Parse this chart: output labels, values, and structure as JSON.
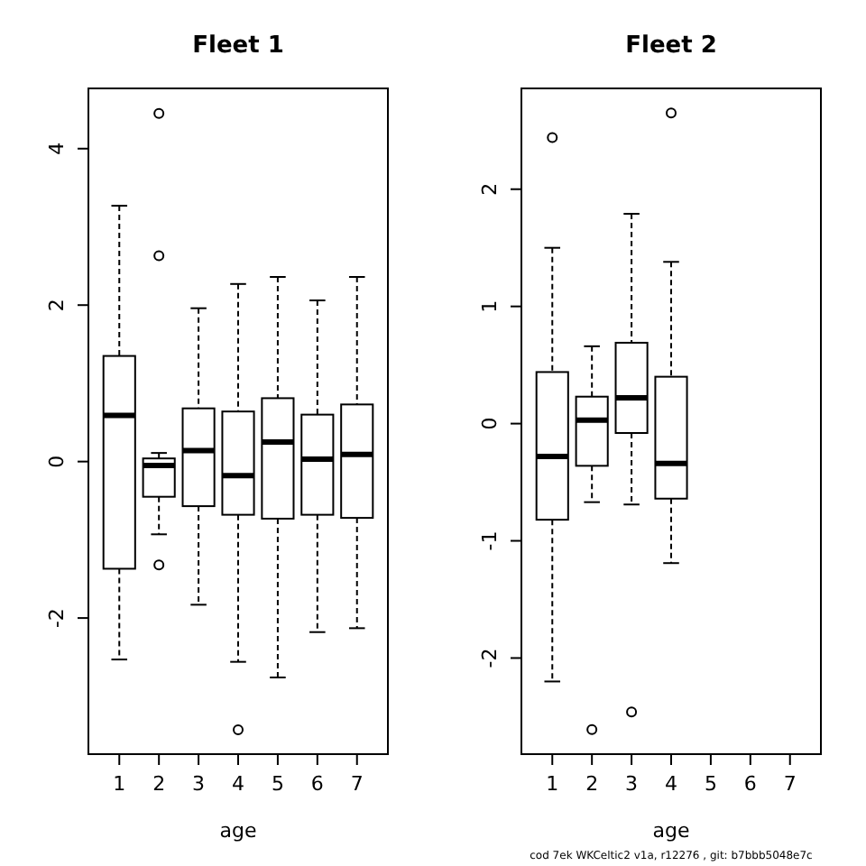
{
  "chart_data": [
    {
      "type": "box",
      "title": "Fleet 1",
      "xlabel": "age",
      "categories": [
        "1",
        "2",
        "3",
        "4",
        "5",
        "6",
        "7"
      ],
      "ylim": [
        -3.74,
        4.77
      ],
      "yticks": [
        -2,
        0,
        2,
        4
      ],
      "grid": false,
      "boxes": [
        {
          "low": -2.53,
          "q1": -1.37,
          "median": 0.59,
          "q3": 1.35,
          "high": 3.27
        },
        {
          "low": -0.93,
          "q1": -0.45,
          "median": -0.05,
          "q3": 0.04,
          "high": 0.11,
          "outliers": [
            4.45,
            2.63,
            -1.32
          ]
        },
        {
          "low": -1.83,
          "q1": -0.57,
          "median": 0.14,
          "q3": 0.68,
          "high": 1.96
        },
        {
          "low": -2.56,
          "q1": -0.68,
          "median": -0.18,
          "q3": 0.64,
          "high": 2.27,
          "outliers": [
            -3.43
          ]
        },
        {
          "low": -2.76,
          "q1": -0.73,
          "median": 0.25,
          "q3": 0.81,
          "high": 2.36
        },
        {
          "low": -2.18,
          "q1": -0.68,
          "median": 0.03,
          "q3": 0.6,
          "high": 2.06
        },
        {
          "low": -2.13,
          "q1": -0.72,
          "median": 0.09,
          "q3": 0.73,
          "high": 2.36
        }
      ]
    },
    {
      "type": "box",
      "title": "Fleet 2",
      "xlabel": "age",
      "categories": [
        "1",
        "2",
        "3",
        "4",
        "5",
        "6",
        "7"
      ],
      "ylim": [
        -2.82,
        2.86
      ],
      "yticks": [
        -2,
        -1,
        0,
        1,
        2
      ],
      "grid": false,
      "boxes": [
        {
          "low": -2.2,
          "q1": -0.82,
          "median": -0.28,
          "q3": 0.44,
          "high": 1.5,
          "outliers": [
            2.44
          ]
        },
        {
          "low": -0.67,
          "q1": -0.36,
          "median": 0.03,
          "q3": 0.23,
          "high": 0.66,
          "outliers": [
            -2.61
          ]
        },
        {
          "low": -0.69,
          "q1": -0.08,
          "median": 0.22,
          "q3": 0.69,
          "high": 1.79,
          "outliers": [
            -2.46
          ]
        },
        {
          "low": -1.19,
          "q1": -0.64,
          "median": -0.34,
          "q3": 0.4,
          "high": 1.38,
          "outliers": [
            2.65
          ]
        },
        null,
        null,
        null
      ],
      "annotations": [
        "cod 7ek WKCeltic2 v1a, r12276 , git: b7bbb5048e7c"
      ]
    }
  ]
}
